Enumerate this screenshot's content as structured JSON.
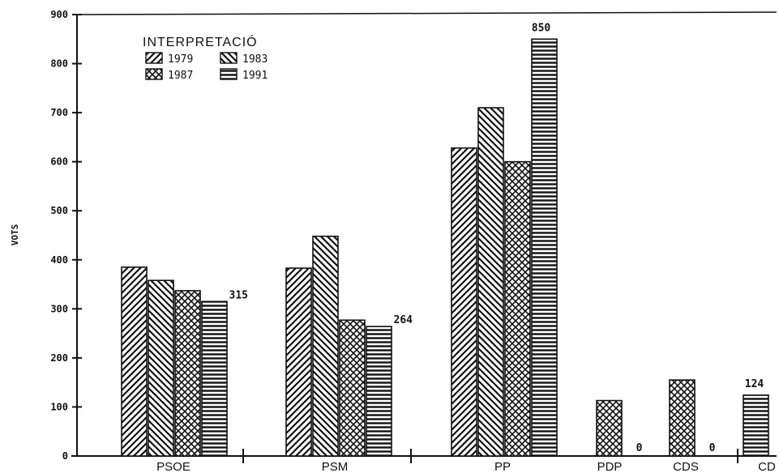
{
  "chart_data": {
    "type": "bar",
    "ylabel": "VOTS",
    "xlabel": "",
    "ylim": [
      0,
      900
    ],
    "yticks": [
      "0",
      "100",
      "200",
      "300",
      "400",
      "500",
      "600",
      "700",
      "800",
      "900"
    ],
    "categories": [
      "PSOE",
      "PSM",
      "PP",
      "PDP",
      "CDS",
      "CD"
    ],
    "legend": {
      "title": "INTERPRETACIÓ",
      "position": "top-left"
    },
    "series": [
      {
        "name": "1979",
        "pattern": "diagonal-up",
        "values": [
          385,
          383,
          628,
          null,
          null,
          null
        ]
      },
      {
        "name": "1983",
        "pattern": "diagonal-down",
        "values": [
          358,
          448,
          710,
          null,
          null,
          null
        ]
      },
      {
        "name": "1987",
        "pattern": "crosshatch",
        "values": [
          337,
          277,
          600,
          113,
          155,
          null
        ]
      },
      {
        "name": "1991",
        "pattern": "horizontal",
        "values": [
          315,
          264,
          850,
          0,
          0,
          124
        ]
      }
    ],
    "data_labels": [
      {
        "category": "PSOE",
        "series": "1991",
        "text": "315"
      },
      {
        "category": "PSM",
        "series": "1991",
        "text": "264"
      },
      {
        "category": "PP",
        "series": "1991",
        "text": "850"
      },
      {
        "category": "PDP",
        "series": "1991",
        "text": "0"
      },
      {
        "category": "CDS",
        "series": "1991",
        "text": "0"
      },
      {
        "category": "CD",
        "series": "1991",
        "text": "124"
      }
    ],
    "colors": {
      "ink": "#111111",
      "background": "#ffffff"
    }
  }
}
